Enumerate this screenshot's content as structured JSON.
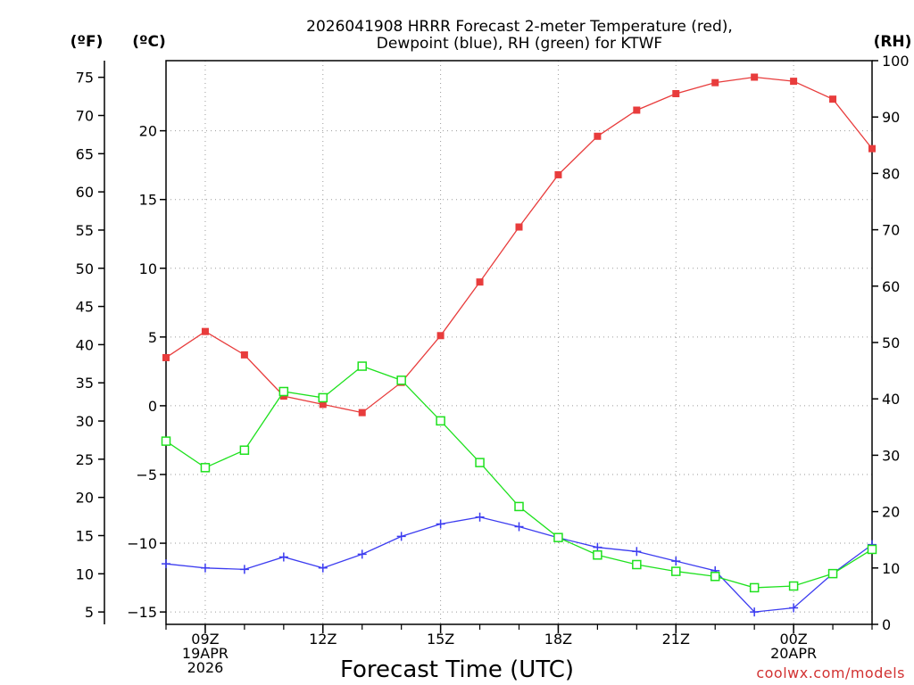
{
  "chart_data": {
    "type": "line",
    "title_line1": "2026041908 HRRR Forecast 2-meter Temperature (red),",
    "title_line2": "Dewpoint (blue), RH (green) for KTWF",
    "xlabel": "Forecast Time (UTC)",
    "credit": "coolwx.com/models",
    "units": {
      "fahrenheit": "(ºF)",
      "celsius": "(ºC)",
      "rh": "(RH)"
    },
    "x": [
      8,
      9,
      10,
      11,
      12,
      13,
      14,
      15,
      16,
      17,
      18,
      19,
      20,
      21,
      22,
      23,
      24,
      25,
      26
    ],
    "xlim": [
      8,
      26
    ],
    "x_ticks": [
      {
        "x": 9,
        "lines": [
          "09Z",
          "19APR",
          "2026"
        ]
      },
      {
        "x": 12,
        "lines": [
          "12Z"
        ]
      },
      {
        "x": 15,
        "lines": [
          "15Z"
        ]
      },
      {
        "x": 18,
        "lines": [
          "18Z"
        ]
      },
      {
        "x": 21,
        "lines": [
          "21Z"
        ]
      },
      {
        "x": 24,
        "lines": [
          "00Z",
          "20APR"
        ]
      }
    ],
    "y_celsius": {
      "lim": [
        -15.9,
        25.1
      ],
      "ticks": [
        -15,
        -10,
        -5,
        0,
        5,
        10,
        15,
        20
      ],
      "labels": [
        "−15",
        "−10",
        "−5",
        "0",
        "5",
        "10",
        "15",
        "20"
      ]
    },
    "y_fahrenheit": {
      "ticks": [
        5,
        10,
        15,
        20,
        25,
        30,
        35,
        40,
        45,
        50,
        55,
        60,
        65,
        70,
        75
      ]
    },
    "y_rh": {
      "lim": [
        0,
        100
      ],
      "ticks": [
        0,
        10,
        20,
        30,
        40,
        50,
        60,
        70,
        80,
        90,
        100
      ]
    },
    "series": [
      {
        "name": "Temperature",
        "axis": "celsius",
        "color": "#e83c3c",
        "marker": "filled-square",
        "values": [
          3.5,
          5.4,
          3.7,
          0.7,
          0.1,
          -0.5,
          1.7,
          5.1,
          9.0,
          13.0,
          16.8,
          19.6,
          21.5,
          22.7,
          23.5,
          23.9,
          23.6,
          22.3,
          18.7
        ]
      },
      {
        "name": "Dewpoint",
        "axis": "celsius",
        "color": "#3c3cf0",
        "marker": "plus",
        "values": [
          -11.5,
          -11.8,
          -11.9,
          -11.0,
          -11.8,
          -10.8,
          -9.5,
          -8.6,
          -8.1,
          -8.8,
          -9.6,
          -10.3,
          -10.6,
          -11.3,
          -12.0,
          -15.0,
          -14.7,
          -12.2,
          -10.1
        ]
      },
      {
        "name": "RH",
        "axis": "rh",
        "color": "#1ee11e",
        "marker": "open-square",
        "values": [
          32.5,
          27.8,
          30.9,
          41.3,
          40.2,
          45.8,
          43.3,
          36.1,
          28.7,
          20.9,
          15.4,
          12.3,
          10.6,
          9.4,
          8.5,
          6.5,
          6.8,
          9.0,
          13.3
        ]
      }
    ]
  }
}
